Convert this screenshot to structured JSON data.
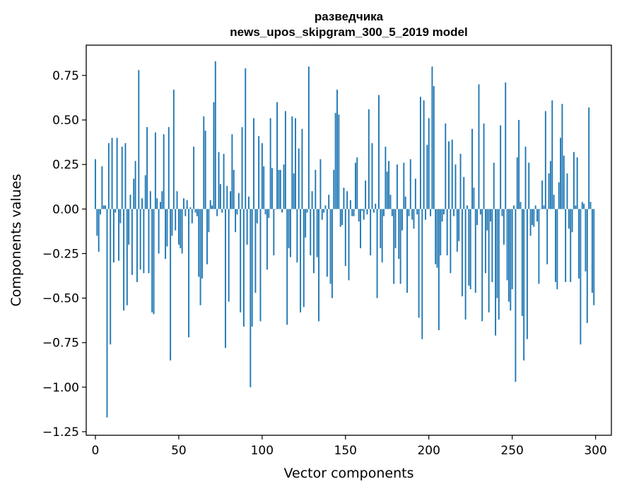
{
  "chart_data": {
    "type": "bar",
    "title_line1": "разведчика",
    "title_line2": "news_upos_skipgram_300_5_2019 model",
    "xlabel": "Vector components",
    "ylabel": "Components values",
    "xlim": [
      -5.5,
      309.5
    ],
    "ylim": [
      -1.27,
      0.92
    ],
    "xticks": [
      0,
      50,
      100,
      150,
      200,
      250,
      300
    ],
    "yticks": [
      0.75,
      0.5,
      0.25,
      0.0,
      -0.25,
      -0.5,
      -0.75,
      -1.0,
      -1.25
    ],
    "ytick_labels": [
      "0.75",
      "0.50",
      "0.25",
      "0.00",
      "−0.25",
      "−0.50",
      "−0.75",
      "−1.00",
      "−1.25"
    ],
    "bar_color": "#1f77b4",
    "x": [
      0,
      1,
      2,
      3,
      4,
      5,
      6,
      7,
      8,
      9,
      10,
      11,
      12,
      13,
      14,
      15,
      16,
      17,
      18,
      19,
      20,
      21,
      22,
      23,
      24,
      25,
      26,
      27,
      28,
      29,
      30,
      31,
      32,
      33,
      34,
      35,
      36,
      37,
      38,
      39,
      40,
      41,
      42,
      43,
      44,
      45,
      46,
      47,
      48,
      49,
      50,
      51,
      52,
      53,
      54,
      55,
      56,
      57,
      58,
      59,
      60,
      61,
      62,
      63,
      64,
      65,
      66,
      67,
      68,
      69,
      70,
      71,
      72,
      73,
      74,
      75,
      76,
      77,
      78,
      79,
      80,
      81,
      82,
      83,
      84,
      85,
      86,
      87,
      88,
      89,
      90,
      91,
      92,
      93,
      94,
      95,
      96,
      97,
      98,
      99,
      100,
      101,
      102,
      103,
      104,
      105,
      106,
      107,
      108,
      109,
      110,
      111,
      112,
      113,
      114,
      115,
      116,
      117,
      118,
      119,
      120,
      121,
      122,
      123,
      124,
      125,
      126,
      127,
      128,
      129,
      130,
      131,
      132,
      133,
      134,
      135,
      136,
      137,
      138,
      139,
      140,
      141,
      142,
      143,
      144,
      145,
      146,
      147,
      148,
      149,
      150,
      151,
      152,
      153,
      154,
      155,
      156,
      157,
      158,
      159,
      160,
      161,
      162,
      163,
      164,
      165,
      166,
      167,
      168,
      169,
      170,
      171,
      172,
      173,
      174,
      175,
      176,
      177,
      178,
      179,
      180,
      181,
      182,
      183,
      184,
      185,
      186,
      187,
      188,
      189,
      190,
      191,
      192,
      193,
      194,
      195,
      196,
      197,
      198,
      199,
      200,
      201,
      202,
      203,
      204,
      205,
      206,
      207,
      208,
      209,
      210,
      211,
      212,
      213,
      214,
      215,
      216,
      217,
      218,
      219,
      220,
      221,
      222,
      223,
      224,
      225,
      226,
      227,
      228,
      229,
      230,
      231,
      232,
      233,
      234,
      235,
      236,
      237,
      238,
      239,
      240,
      241,
      242,
      243,
      244,
      245,
      246,
      247,
      248,
      249,
      250,
      251,
      252,
      253,
      254,
      255,
      256,
      257,
      258,
      259,
      260,
      261,
      262,
      263,
      264,
      265,
      266,
      267,
      268,
      269,
      270,
      271,
      272,
      273,
      274,
      275,
      276,
      277,
      278,
      279,
      280,
      281,
      282,
      283,
      284,
      285,
      286,
      287,
      288,
      289,
      290,
      291,
      292,
      293,
      294,
      295,
      296,
      297,
      298,
      299
    ],
    "values": [
      0.28,
      -0.15,
      -0.24,
      -0.03,
      0.24,
      0.02,
      0.02,
      -1.17,
      0.37,
      -0.76,
      0.4,
      -0.3,
      -0.02,
      0.4,
      -0.29,
      -0.08,
      0.35,
      -0.57,
      0.37,
      -0.54,
      -0.2,
      0.08,
      -0.37,
      0.17,
      0.27,
      -0.41,
      0.78,
      -0.34,
      0.06,
      -0.36,
      0.19,
      0.46,
      -0.36,
      0.1,
      -0.58,
      -0.59,
      0.43,
      0.06,
      -0.25,
      0.04,
      0.1,
      0.42,
      -0.28,
      -0.21,
      0.46,
      -0.85,
      -0.15,
      0.67,
      -0.12,
      0.1,
      -0.2,
      -0.22,
      -0.25,
      0.06,
      -0.04,
      0.05,
      -0.72,
      0.01,
      -0.08,
      0.35,
      -0.02,
      -0.04,
      -0.38,
      -0.54,
      -0.39,
      0.52,
      0.44,
      -0.31,
      -0.13,
      0.05,
      0.02,
      0.6,
      0.83,
      -0.04,
      0.32,
      0.14,
      -0.02,
      0.31,
      -0.78,
      0.13,
      -0.52,
      0.1,
      0.42,
      0.22,
      -0.13,
      -0.03,
      0.09,
      -0.58,
      0.46,
      -0.66,
      0.79,
      -0.2,
      0.07,
      -1.0,
      -0.66,
      0.51,
      -0.47,
      -0.08,
      0.41,
      -0.63,
      0.37,
      0.24,
      -0.03,
      -0.34,
      -0.05,
      0.51,
      0.23,
      -0.26,
      0.0,
      0.6,
      0.22,
      0.22,
      -0.02,
      0.25,
      0.55,
      -0.65,
      -0.22,
      -0.27,
      0.52,
      0.2,
      0.51,
      -0.3,
      0.34,
      -0.58,
      0.45,
      -0.55,
      -0.16,
      -0.02,
      0.8,
      -0.26,
      0.1,
      -0.36,
      0.22,
      -0.27,
      -0.63,
      0.28,
      -0.06,
      -0.02,
      0.02,
      -0.38,
      0.08,
      -0.42,
      -0.5,
      0.22,
      0.54,
      0.67,
      0.53,
      -0.1,
      -0.09,
      0.12,
      -0.32,
      0.1,
      -0.4,
      0.05,
      -0.04,
      -0.04,
      0.26,
      0.29,
      -0.07,
      -0.22,
      -0.01,
      -0.06,
      0.16,
      -0.03,
      0.56,
      -0.26,
      0.37,
      -0.02,
      0.03,
      -0.5,
      0.64,
      -0.22,
      -0.3,
      -0.04,
      0.35,
      0.21,
      0.27,
      0.08,
      -0.04,
      -0.42,
      -0.22,
      0.25,
      -0.28,
      -0.42,
      -0.12,
      0.26,
      0.07,
      -0.47,
      -0.04,
      0.28,
      -0.06,
      -0.11,
      0.17,
      -0.03,
      -0.61,
      0.63,
      -0.73,
      0.61,
      -0.06,
      0.36,
      0.51,
      -0.04,
      0.8,
      0.69,
      -0.31,
      -0.33,
      -0.68,
      -0.26,
      -0.07,
      -0.03,
      0.48,
      -0.26,
      0.38,
      -0.36,
      0.39,
      -0.04,
      0.25,
      -0.24,
      -0.18,
      0.31,
      -0.49,
      0.18,
      -0.62,
      0.02,
      -0.43,
      -0.45,
      0.45,
      0.12,
      -0.47,
      -0.09,
      0.7,
      -0.03,
      -0.63,
      0.48,
      -0.36,
      -0.12,
      -0.58,
      -0.07,
      -0.41,
      0.26,
      -0.71,
      -0.5,
      -0.62,
      0.47,
      -0.04,
      -0.2,
      0.71,
      -0.4,
      -0.52,
      -0.57,
      -0.45,
      0.02,
      -0.97,
      0.29,
      0.5,
      0.04,
      -0.6,
      -0.85,
      0.35,
      -0.73,
      0.26,
      -0.15,
      -0.09,
      -0.1,
      0.02,
      -0.07,
      -0.42,
      0.0,
      0.16,
      0.02,
      0.55,
      -0.31,
      0.2,
      0.27,
      0.61,
      0.08,
      -0.41,
      -0.45,
      0.15,
      0.4,
      0.59,
      0.3,
      -0.41,
      0.2,
      -0.11,
      -0.41,
      -0.13,
      0.32,
      0.02,
      0.29,
      -0.39,
      -0.76,
      0.04,
      0.03,
      -0.35,
      -0.64,
      0.57,
      0.04,
      -0.47,
      -0.54
    ]
  }
}
